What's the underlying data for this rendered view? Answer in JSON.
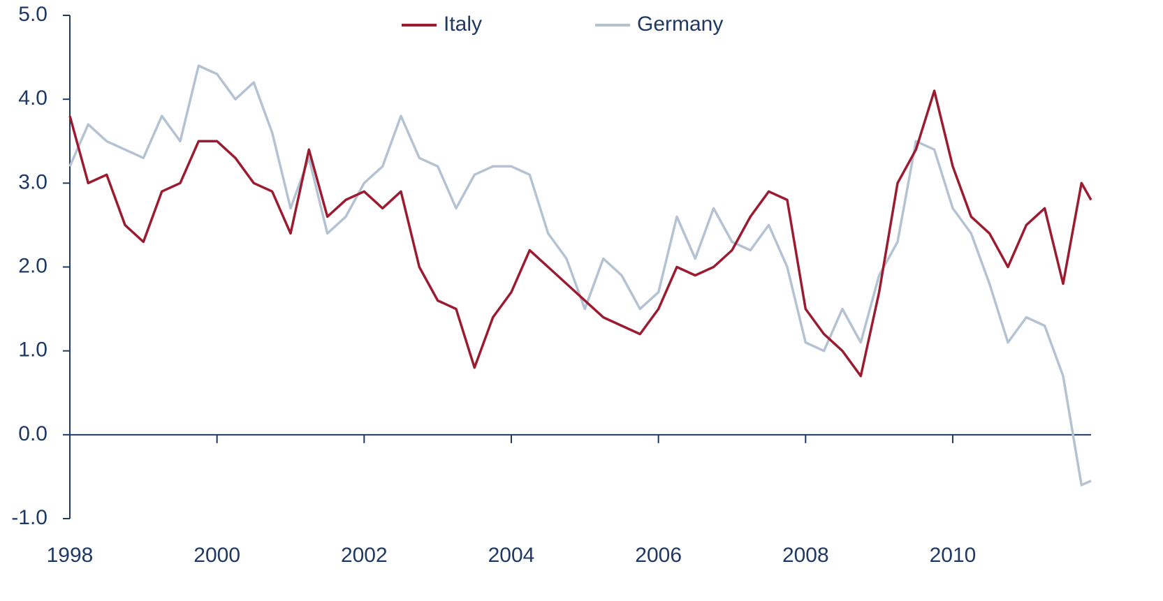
{
  "chart_data": {
    "type": "line",
    "x": [
      1998,
      1998.25,
      1998.5,
      1998.75,
      1999,
      1999.25,
      1999.5,
      1999.75,
      2000,
      2000.25,
      2000.5,
      2000.75,
      2001,
      2001.25,
      2001.5,
      2001.75,
      2002,
      2002.25,
      2002.5,
      2002.75,
      2003,
      2003.25,
      2003.5,
      2003.75,
      2004,
      2004.25,
      2004.5,
      2004.75,
      2005,
      2005.25,
      2005.5,
      2005.75,
      2006,
      2006.25,
      2006.5,
      2006.75,
      2007,
      2007.25,
      2007.5,
      2007.75,
      2008,
      2008.25,
      2008.5,
      2008.75,
      2009,
      2009.25,
      2009.5,
      2009.75,
      2010,
      2010.25,
      2010.5,
      2010.75,
      2011,
      2011.25,
      2011.5,
      2011.75,
      2011.88
    ],
    "series": [
      {
        "name": "Italy",
        "color": "#9b1b30",
        "values": [
          3.8,
          3.0,
          3.1,
          2.5,
          2.3,
          2.9,
          3.0,
          3.5,
          3.5,
          3.3,
          3.0,
          2.9,
          2.4,
          3.4,
          2.6,
          2.8,
          2.9,
          2.7,
          2.9,
          2.0,
          1.6,
          1.5,
          0.8,
          1.4,
          1.7,
          2.2,
          2.0,
          1.8,
          1.6,
          1.4,
          1.3,
          1.2,
          1.5,
          2.0,
          1.9,
          2.0,
          2.2,
          2.6,
          2.9,
          2.8,
          1.5,
          1.2,
          1.0,
          0.7,
          1.7,
          3.0,
          3.4,
          4.1,
          3.2,
          2.6,
          2.4,
          2.0,
          2.5,
          2.7,
          1.8,
          3.0,
          2.8
        ]
      },
      {
        "name": "Germany",
        "color": "#b4c2d2",
        "values": [
          3.2,
          3.7,
          3.5,
          3.4,
          3.3,
          3.8,
          3.5,
          4.4,
          4.3,
          4.0,
          4.2,
          3.6,
          2.7,
          3.3,
          2.4,
          2.6,
          3.0,
          3.2,
          3.8,
          3.3,
          3.2,
          2.7,
          3.1,
          3.2,
          3.2,
          3.1,
          2.4,
          2.1,
          1.5,
          2.1,
          1.9,
          1.5,
          1.7,
          2.6,
          2.1,
          2.7,
          2.3,
          2.2,
          2.5,
          2.0,
          1.1,
          1.0,
          1.5,
          1.1,
          1.9,
          2.3,
          3.5,
          3.4,
          2.7,
          2.4,
          1.8,
          1.1,
          1.4,
          1.3,
          0.7,
          -0.6,
          -0.55
        ]
      }
    ],
    "xlim": [
      1998,
      2011.88
    ],
    "xticks": [
      1998,
      2000,
      2002,
      2004,
      2006,
      2008,
      2010
    ],
    "ylim": [
      -1,
      5
    ],
    "yticks": [
      {
        "value": -1,
        "label": "-1.0"
      },
      {
        "value": 0,
        "label": "0.0"
      },
      {
        "value": 1,
        "label": "1.0"
      },
      {
        "value": 2,
        "label": "2.0"
      },
      {
        "value": 3,
        "label": "3.0"
      },
      {
        "value": 4,
        "label": "4.0"
      },
      {
        "value": 5,
        "label": "5.0"
      }
    ],
    "legend": "top"
  }
}
